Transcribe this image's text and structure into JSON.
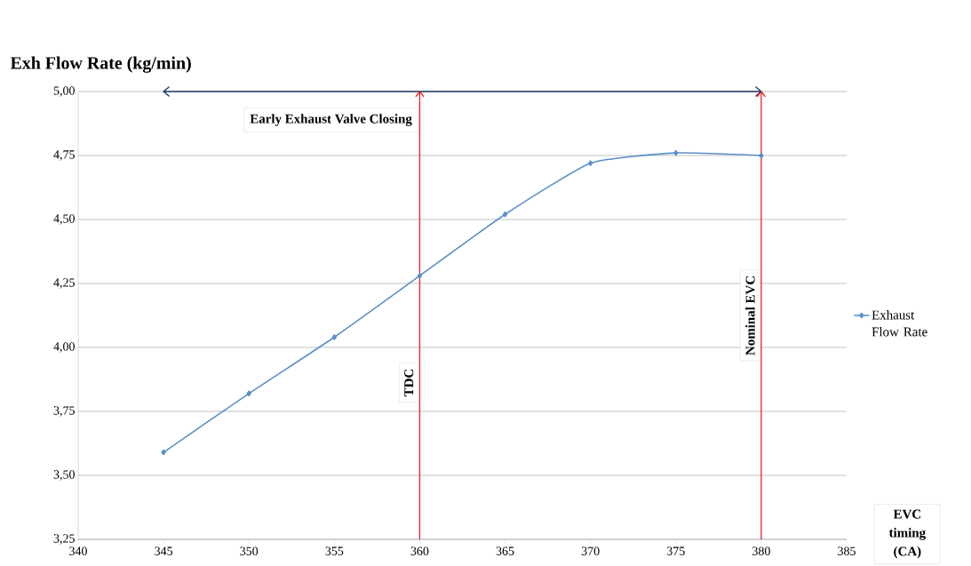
{
  "chart_data": {
    "type": "line",
    "ylabel": "Exh Flow Rate (kg/min)",
    "xlabel": "EVC timing (CA)",
    "x": [
      345,
      350,
      355,
      360,
      365,
      370,
      375,
      380
    ],
    "series": [
      {
        "name": "Exhaust Flow Rate",
        "color": "#5b8fc9",
        "values": [
          3.59,
          3.82,
          4.04,
          4.28,
          4.52,
          4.72,
          4.76,
          4.75
        ]
      }
    ],
    "xlim": [
      340,
      385
    ],
    "xticks": [
      340,
      345,
      350,
      355,
      360,
      365,
      370,
      375,
      380,
      385
    ],
    "ylim": [
      3.25,
      5.0
    ],
    "yticks": [
      {
        "value": 3.25,
        "label": "3,25"
      },
      {
        "value": 3.5,
        "label": "3,50"
      },
      {
        "value": 3.75,
        "label": "3,75"
      },
      {
        "value": 4.0,
        "label": "4,00"
      },
      {
        "value": 4.25,
        "label": "4,25"
      },
      {
        "value": 4.5,
        "label": "4,50"
      },
      {
        "value": 4.75,
        "label": "4,75"
      },
      {
        "value": 5.0,
        "label": "5,00"
      }
    ],
    "annotations": [
      "Early Exhaust Valve Closing"
    ],
    "ref_lines": [
      {
        "axis": "x",
        "value": 360,
        "label": "TDC",
        "color": "#e8202a"
      },
      {
        "axis": "x",
        "value": 380,
        "label": "Nominal  EVC",
        "color": "#e8202a"
      }
    ],
    "grid": "y",
    "legend": "right",
    "marker": "diamond",
    "line_style": "solid"
  }
}
